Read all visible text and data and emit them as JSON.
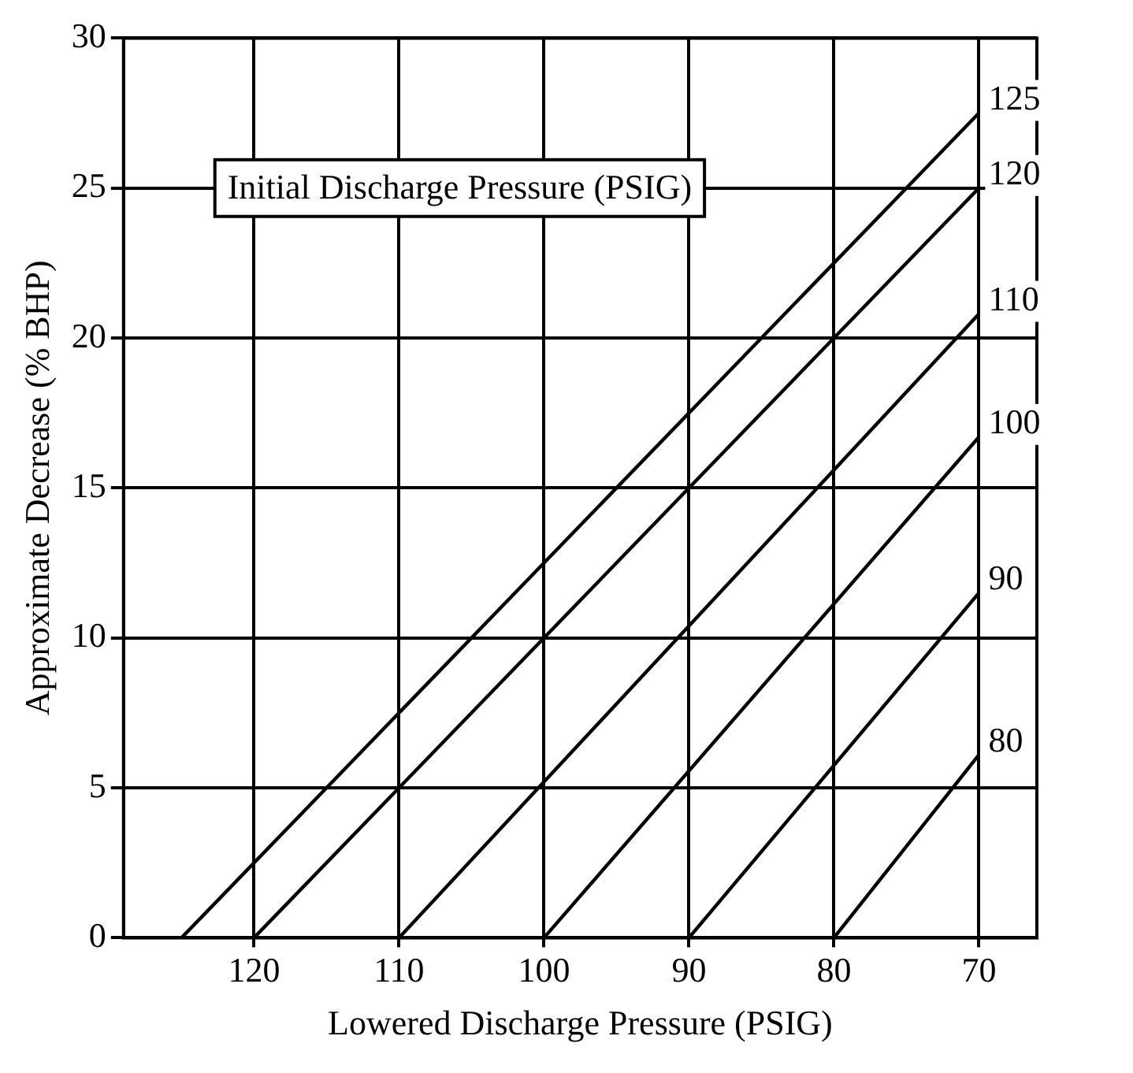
{
  "chart_data": {
    "type": "line",
    "xlabel": "Lowered Discharge Pressure (PSIG)",
    "ylabel": "Approximate Decrease (% BHP)",
    "legend_title": "Initial Discharge Pressure (PSIG)",
    "series": [
      {
        "name": "125",
        "color": "#000000",
        "x": [
          125,
          70
        ],
        "values": [
          0,
          27.5
        ]
      },
      {
        "name": "120",
        "color": "#000000",
        "x": [
          120,
          70
        ],
        "values": [
          0,
          25
        ]
      },
      {
        "name": "110",
        "color": "#000000",
        "x": [
          110,
          70
        ],
        "values": [
          0,
          20.8
        ]
      },
      {
        "name": "100",
        "color": "#000000",
        "x": [
          100,
          70
        ],
        "values": [
          0,
          16.7
        ]
      },
      {
        "name": "90",
        "color": "#000000",
        "x": [
          90,
          70
        ],
        "values": [
          0,
          11.5
        ]
      },
      {
        "name": "80",
        "color": "#000000",
        "x": [
          80,
          70
        ],
        "values": [
          0,
          6.1
        ]
      }
    ],
    "xlim": [
      129,
      66
    ],
    "xticks": [
      120,
      110,
      100,
      90,
      80,
      70
    ],
    "ylim": [
      0,
      30
    ],
    "yticks": [
      0,
      5,
      10,
      15,
      20,
      25,
      30
    ],
    "grid": true,
    "legend": false,
    "marker": "none",
    "line_style": "solid"
  }
}
